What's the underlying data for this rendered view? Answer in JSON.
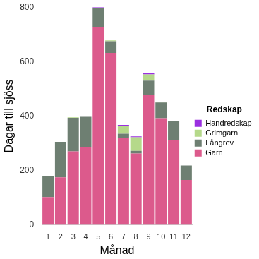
{
  "chart_data": {
    "type": "bar",
    "stacked": true,
    "x_label": "Månad",
    "y_label": "Dagar till sjöss",
    "legend_title": "Redskap",
    "categories": [
      "1",
      "2",
      "3",
      "4",
      "5",
      "6",
      "7",
      "8",
      "9",
      "10",
      "11",
      "12"
    ],
    "series": [
      {
        "name": "Garn",
        "color": "#dc5a8c",
        "values": [
          102,
          175,
          270,
          287,
          728,
          632,
          320,
          262,
          478,
          392,
          312,
          165
        ]
      },
      {
        "name": "Långrev",
        "color": "#6e7f72",
        "values": [
          76,
          130,
          123,
          110,
          68,
          43,
          15,
          10,
          52,
          58,
          68,
          53
        ]
      },
      {
        "name": "Grimgarn",
        "color": "#b5d98a",
        "values": [
          0,
          0,
          2,
          0,
          2,
          3,
          30,
          50,
          23,
          2,
          3,
          0
        ]
      },
      {
        "name": "Handredskap",
        "color": "#9a2fe0",
        "values": [
          0,
          0,
          0,
          0,
          2,
          0,
          2,
          3,
          5,
          0,
          0,
          0
        ]
      }
    ],
    "ylim": [
      0,
      800
    ],
    "yticks": [
      0,
      200,
      400,
      600,
      800
    ],
    "grid": false,
    "legend": "right"
  }
}
